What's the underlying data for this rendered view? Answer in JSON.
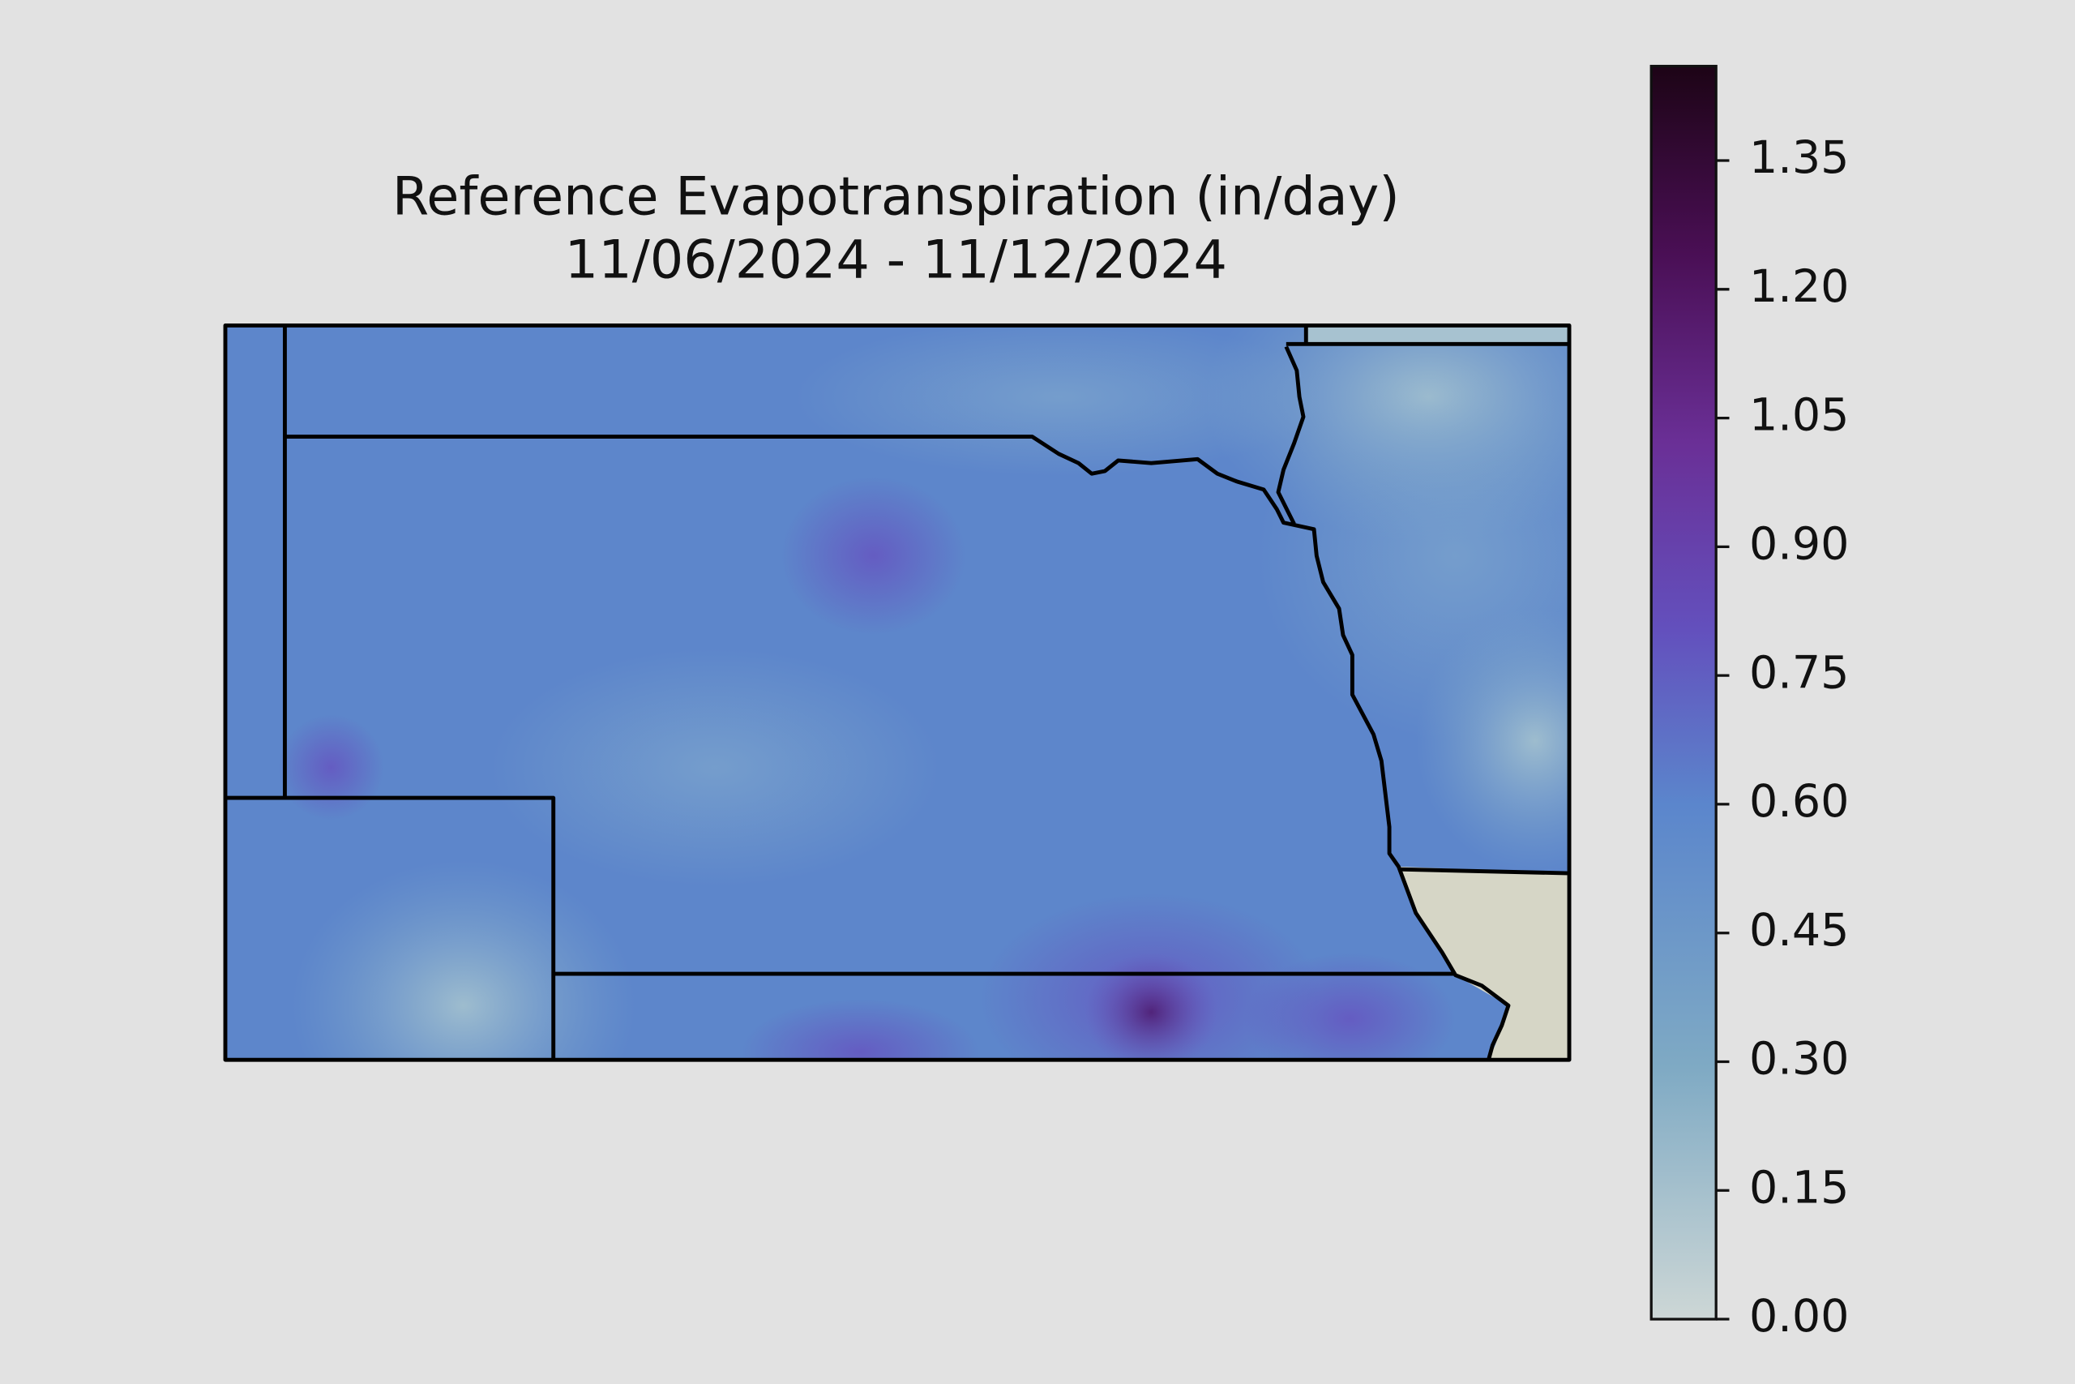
{
  "map": {
    "title": "Reference Evapotranspiration (in/day)",
    "subtitle": "11/06/2024 - 11/12/2024",
    "colorbar": {
      "lim": [
        0,
        1.46
      ],
      "ticks": [
        {
          "value": 0,
          "label": "0.00"
        },
        0.15,
        {
          "value": 0.3,
          "label": "0.30"
        },
        0.45,
        {
          "value": 0.6,
          "label": "0.60"
        },
        0.75,
        {
          "value": 0.9,
          "label": "0.90"
        },
        1.05,
        {
          "value": 1.2,
          "label": "1.20"
        },
        1.35
      ]
    }
  }
}
